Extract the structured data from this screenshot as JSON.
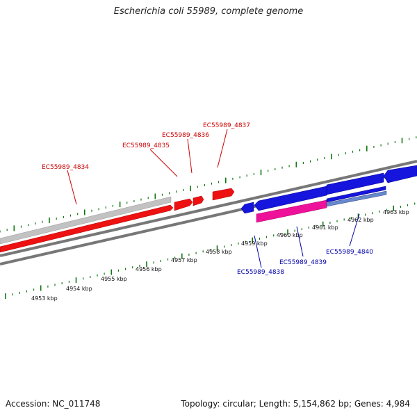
{
  "title": "Escherichia coli 55989, complete genome",
  "footer": {
    "accession": "Accession: NC_011748",
    "summary": "Topology: circular; Length: 5,154,862 bp; Genes: 4,984"
  },
  "colors": {
    "forward": "#ee1111",
    "reverse": "#1515dd",
    "pseudo": "#c0c0c0",
    "rna": "#ee1199",
    "backbone": "#777777",
    "ticks": "#117711",
    "forward_label": "#cc0000",
    "reverse_label": "#0000aa"
  },
  "ticks": {
    "labels": [
      "4953 kbp",
      "4954 kbp",
      "4955 kbp",
      "4956 kbp",
      "4957 kbp",
      "4958 kbp",
      "4959 kbp",
      "4960 kbp",
      "4961 kbp",
      "4962 kbp",
      "4963 kbp"
    ]
  },
  "genes": {
    "forward": [
      {
        "name": "EC55989_4834"
      },
      {
        "name": "EC55989_4835"
      },
      {
        "name": "EC55989_4836"
      },
      {
        "name": "EC55989_4837"
      }
    ],
    "reverse": [
      {
        "name": "EC55989_4838"
      },
      {
        "name": "EC55989_4839"
      },
      {
        "name": "EC55989_4840"
      }
    ]
  }
}
